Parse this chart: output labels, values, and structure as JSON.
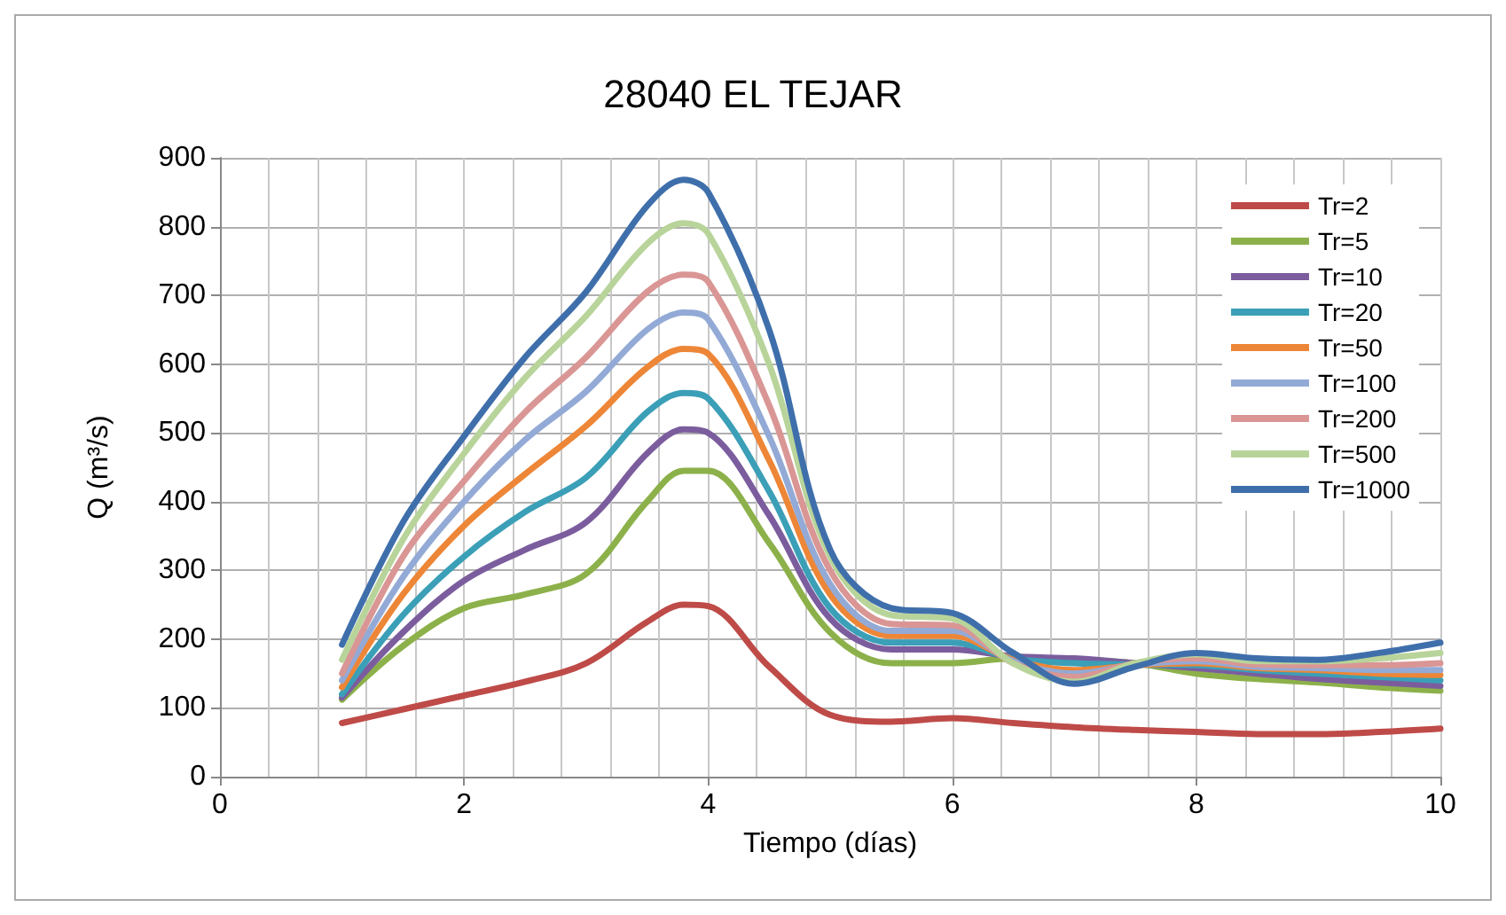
{
  "chart_data": {
    "type": "line",
    "title": "28040 EL TEJAR",
    "xlabel": "Tiempo (días)",
    "ylabel": "Q (m³/s)",
    "x": [
      1,
      1.5,
      2,
      2.5,
      3,
      3.5,
      3.8,
      4,
      4.5,
      5,
      5.5,
      6,
      6.5,
      7,
      7.5,
      8,
      8.5,
      9,
      9.5,
      10
    ],
    "xlim": [
      0,
      10
    ],
    "xticks": [
      0,
      2,
      4,
      6,
      8,
      10
    ],
    "ylim": [
      0,
      900
    ],
    "yticks": [
      0,
      100,
      200,
      300,
      400,
      500,
      600,
      700,
      800,
      900
    ],
    "grid": true,
    "legend": "top right",
    "marker": "none",
    "line_style": "solid",
    "series": [
      {
        "name": "Tr=2",
        "color": "#be4b48",
        "values": [
          78,
          98,
          118,
          138,
          165,
          225,
          250,
          248,
          160,
          90,
          80,
          85,
          78,
          72,
          68,
          65,
          62,
          62,
          65,
          70
        ]
      },
      {
        "name": "Tr=5",
        "color": "#8cb14a",
        "values": [
          112,
          190,
          245,
          265,
          295,
          400,
          445,
          445,
          340,
          210,
          165,
          165,
          172,
          170,
          165,
          150,
          142,
          137,
          130,
          125
        ]
      },
      {
        "name": "Tr=10",
        "color": "#7b5d9e",
        "values": [
          115,
          210,
          285,
          330,
          370,
          470,
          505,
          500,
          380,
          230,
          185,
          185,
          175,
          172,
          165,
          158,
          150,
          142,
          137,
          132
        ]
      },
      {
        "name": "Tr=20",
        "color": "#3b9fb7",
        "values": [
          120,
          235,
          320,
          385,
          435,
          530,
          558,
          550,
          415,
          245,
          195,
          195,
          172,
          165,
          163,
          162,
          155,
          150,
          145,
          140
        ]
      },
      {
        "name": "Tr=50",
        "color": "#ed8637",
        "values": [
          130,
          265,
          365,
          440,
          510,
          595,
          622,
          615,
          460,
          265,
          205,
          205,
          170,
          155,
          162,
          165,
          158,
          155,
          150,
          148
        ]
      },
      {
        "name": "Tr=100",
        "color": "#93aad6",
        "values": [
          140,
          290,
          400,
          490,
          560,
          650,
          675,
          665,
          495,
          280,
          212,
          212,
          168,
          150,
          163,
          168,
          160,
          158,
          155,
          155
        ]
      },
      {
        "name": "Tr=200",
        "color": "#d99694",
        "values": [
          150,
          320,
          430,
          530,
          610,
          705,
          730,
          720,
          540,
          300,
          222,
          220,
          165,
          145,
          165,
          172,
          163,
          162,
          162,
          165
        ]
      },
      {
        "name": "Tr=500",
        "color": "#b8d49a",
        "values": [
          170,
          345,
          470,
          580,
          670,
          775,
          805,
          790,
          600,
          320,
          235,
          230,
          165,
          138,
          165,
          178,
          168,
          168,
          172,
          180
        ]
      },
      {
        "name": "Tr=1000",
        "color": "#3f6fab",
        "values": [
          192,
          370,
          495,
          610,
          705,
          830,
          868,
          850,
          650,
          330,
          245,
          238,
          180,
          135,
          160,
          180,
          172,
          170,
          180,
          195
        ]
      }
    ]
  }
}
